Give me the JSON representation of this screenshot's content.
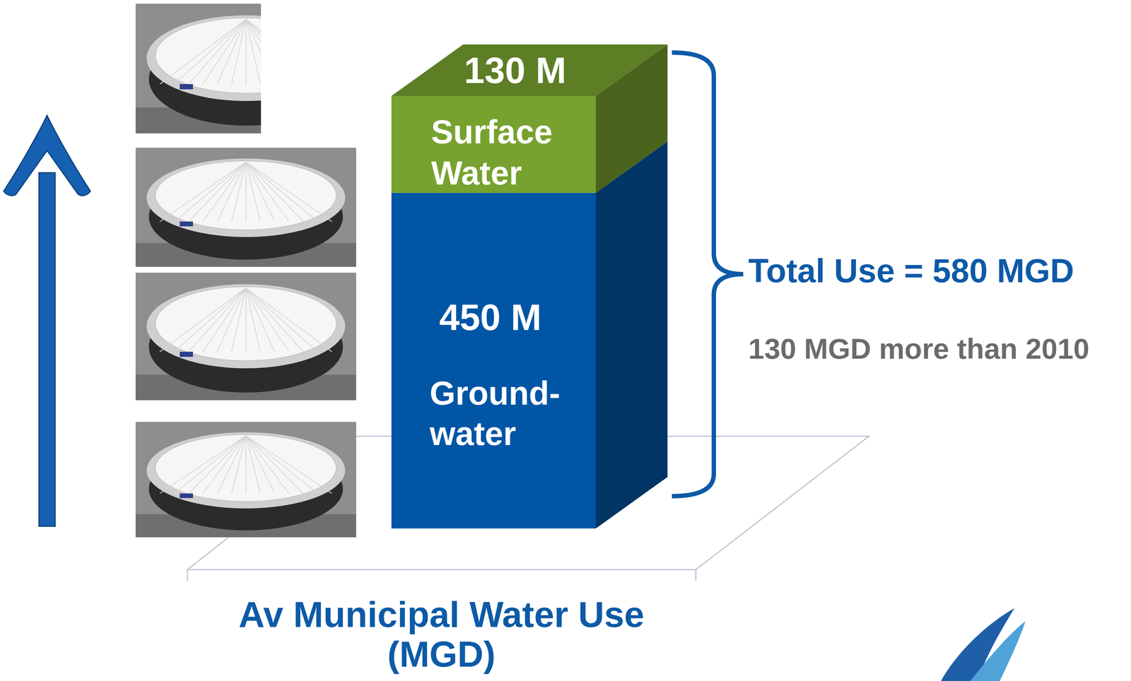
{
  "chart_data": {
    "type": "bar",
    "stacked": true,
    "categories": [
      null
    ],
    "xlabel": "Av Municipal Water Use (MGD)",
    "ylim": [
      0,
      580
    ],
    "tick_labels": false,
    "data_labels": true,
    "series": [
      {
        "name": "Ground-water",
        "color": "#0055a5",
        "values": [
          450
        ],
        "value_labels": [
          "450 M"
        ]
      },
      {
        "name": "Surface Water",
        "color": "#77a22f",
        "values": [
          130
        ],
        "value_labels": [
          "130 M"
        ]
      }
    ],
    "annotations": [
      "Total Use = 580 MGD",
      "130 MGD more than 2010"
    ]
  }
}
